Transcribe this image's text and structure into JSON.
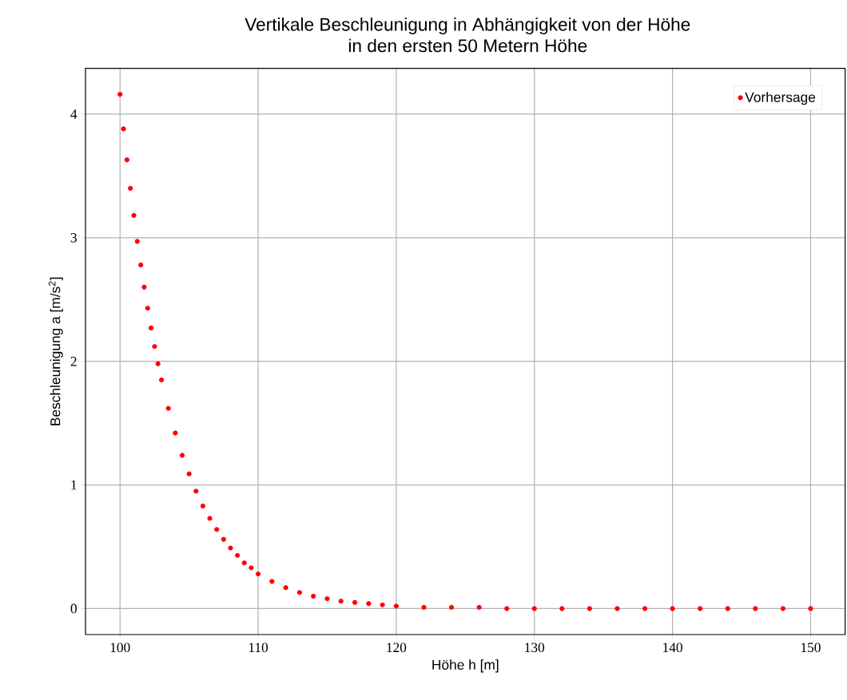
{
  "chart_data": {
    "type": "scatter",
    "title": "Vertikale Beschleunigung in Abhängigkeit von der Höhe",
    "subtitle": "in den ersten 50 Metern Höhe",
    "xlabel": "Höhe h [m]",
    "ylabel": "Beschleunigung a [m/s$^{2}$]",
    "series": [
      {
        "name": "Vorhersage",
        "color": "#ff0000",
        "x": [
          100,
          100.25,
          100.5,
          100.75,
          101,
          101.25,
          101.5,
          101.75,
          102,
          102.25,
          102.5,
          102.75,
          103,
          103.5,
          104,
          104.5,
          105,
          105.5,
          106,
          106.5,
          107,
          107.5,
          108,
          108.5,
          109,
          109.5,
          110,
          111,
          112,
          113,
          114,
          115,
          116,
          117,
          118,
          119,
          120,
          122,
          124,
          126,
          128,
          130,
          132,
          134,
          136,
          138,
          140,
          142,
          144,
          146,
          148,
          150
        ],
        "values": [
          4.16,
          3.88,
          3.63,
          3.4,
          3.18,
          2.97,
          2.78,
          2.6,
          2.43,
          2.27,
          2.12,
          1.98,
          1.85,
          1.62,
          1.42,
          1.24,
          1.09,
          0.95,
          0.83,
          0.73,
          0.64,
          0.56,
          0.49,
          0.43,
          0.37,
          0.33,
          0.28,
          0.22,
          0.17,
          0.13,
          0.1,
          0.08,
          0.06,
          0.05,
          0.04,
          0.03,
          0.02,
          0.01,
          0.01,
          0.01,
          0,
          0,
          0,
          0,
          0,
          0,
          0,
          0,
          0,
          0,
          0,
          0
        ]
      }
    ],
    "xlim": [
      97.5,
      152.5
    ],
    "ylim": [
      -0.21,
      4.37
    ],
    "xticks": [
      100,
      110,
      120,
      130,
      140,
      150
    ],
    "yticks": [
      0,
      1,
      2,
      3,
      4
    ],
    "grid": true,
    "legend": "top right"
  }
}
